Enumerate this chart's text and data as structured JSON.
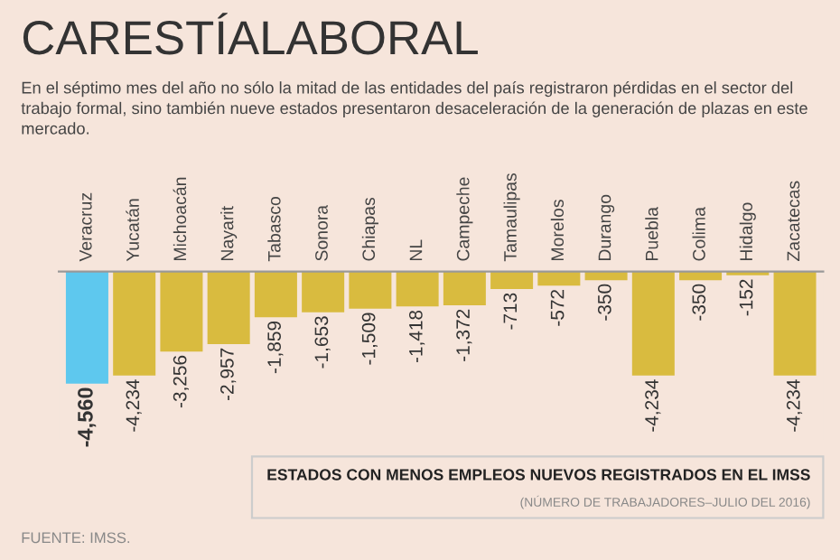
{
  "chart_data": {
    "type": "bar",
    "title": "CARESTÍALABORAL",
    "subtitle": "En el séptimo mes del año no sólo la mitad de las entidades del país registraron pérdidas en el sector del trabajo formal, sino también nueve estados presentaron desaceleración de la generación de plazas en este mercado.",
    "categories": [
      "Veracruz",
      "Yucatán",
      "Michoacán",
      "Nayarit",
      "Tabasco",
      "Sonora",
      "Chiapas",
      "NL",
      "Campeche",
      "Tamaulipas",
      "Morelos",
      "Durango",
      "Puebla",
      "Colima",
      "Hidalgo",
      "Zacatecas"
    ],
    "values": [
      -4560,
      -4234,
      -3256,
      -2957,
      -1859,
      -1653,
      -1509,
      -1418,
      -1372,
      -713,
      -572,
      -350,
      -4234,
      -350,
      -152,
      -4234
    ],
    "value_labels": [
      "-4,560",
      "-4,234",
      "-3,256",
      "-2,957",
      "-1,859",
      "-1,653",
      "-1,509",
      "-1,418",
      "-1,372",
      "-713",
      "-572",
      "-350",
      "-4,234",
      "-350",
      "-152",
      "-4,234"
    ],
    "colors": [
      "#5ec8ee",
      "#d9bb3f",
      "#d9bb3f",
      "#d9bb3f",
      "#d9bb3f",
      "#d9bb3f",
      "#d9bb3f",
      "#d9bb3f",
      "#d9bb3f",
      "#d9bb3f",
      "#d9bb3f",
      "#d9bb3f",
      "#d9bb3f",
      "#d9bb3f",
      "#d9bb3f",
      "#d9bb3f"
    ],
    "annotations": [
      "ESTADOS CON MENOS EMPLEOS NUEVOS REGISTRADOS EN EL IMSS",
      "(NÚMERO DE TRABAJADORES–JULIO DEL 2016)",
      "FUENTE: IMSS."
    ],
    "grid": false,
    "legend": false
  }
}
